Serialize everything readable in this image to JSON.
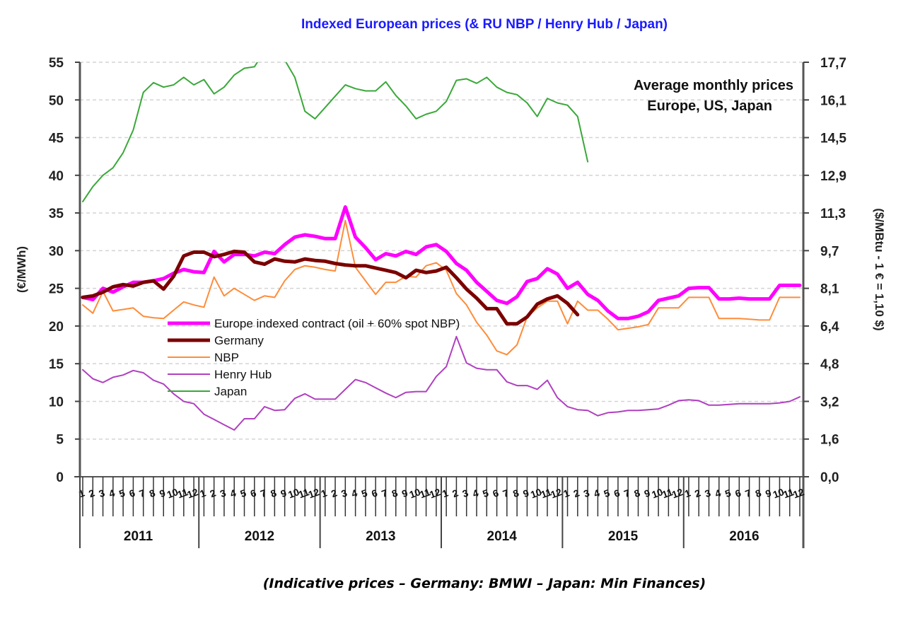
{
  "chart_data": {
    "type": "line",
    "title": "Indexed European prices (& RU NBP / Henry Hub / Japan)",
    "annotation": [
      "Average monthly prices",
      "Europe, US, Japan"
    ],
    "footnote": "(Indicative prices –  Germany: BMWI – Japan: Min Finances)",
    "ylabel": "(€/MWh)",
    "ylabel_right": "($/MBtu - 1 € = 1,10 $)",
    "ylim": [
      0,
      55
    ],
    "yticks": [
      0,
      5,
      10,
      15,
      20,
      25,
      30,
      35,
      40,
      45,
      50,
      55
    ],
    "yticks_right": [
      "0,0",
      "1,6",
      "3,2",
      "4,8",
      "6,4",
      "8,1",
      "9,7",
      "11,3",
      "12,9",
      "14,5",
      "16,1",
      "17,7"
    ],
    "grid": true,
    "legend_position": "center-left",
    "years": [
      "2011",
      "2012",
      "2013",
      "2014",
      "2015",
      "2016"
    ],
    "months": [
      "1",
      "2",
      "3",
      "4",
      "5",
      "6",
      "7",
      "8",
      "9",
      "10",
      "11",
      "12"
    ],
    "series": [
      {
        "name": "Europe indexed contract (oil + 60% spot NBP)",
        "color": "#ff00ff",
        "width": 5,
        "values": [
          23.8,
          23.5,
          25.0,
          24.5,
          25.2,
          25.8,
          25.8,
          26.0,
          26.3,
          27.0,
          27.5,
          27.2,
          27.1,
          29.9,
          28.5,
          29.5,
          29.5,
          29.3,
          29.8,
          29.6,
          30.8,
          31.8,
          32.1,
          31.9,
          31.6,
          31.6,
          35.8,
          31.8,
          30.4,
          28.8,
          29.6,
          29.3,
          29.9,
          29.5,
          30.5,
          30.8,
          29.9,
          28.3,
          27.4,
          25.8,
          24.6,
          23.4,
          23.0,
          23.9,
          25.9,
          26.3,
          27.6,
          26.9,
          25.0,
          25.8,
          24.2,
          23.4,
          22.0,
          21.0,
          21.0,
          21.3,
          21.9,
          23.4,
          23.7,
          24.0,
          25.0,
          25.1,
          25.1,
          23.6,
          23.6,
          23.7,
          23.6,
          23.6,
          23.6,
          25.4,
          25.4,
          25.4
        ]
      },
      {
        "name": "Germany",
        "color": "#7b0000",
        "width": 5,
        "values": [
          23.8,
          24.0,
          24.5,
          25.2,
          25.5,
          25.3,
          25.8,
          26.0,
          24.9,
          26.6,
          29.3,
          29.8,
          29.8,
          29.2,
          29.5,
          29.9,
          29.8,
          28.5,
          28.2,
          28.9,
          28.6,
          28.5,
          28.9,
          28.7,
          28.6,
          28.3,
          28.1,
          28.0,
          28.0,
          27.7,
          27.4,
          27.1,
          26.4,
          27.4,
          27.1,
          27.3,
          27.8,
          26.4,
          24.9,
          23.7,
          22.3,
          22.3,
          20.3,
          20.3,
          21.2,
          22.9,
          23.6,
          24.0,
          23.0,
          21.5,
          null,
          null,
          null,
          null,
          null,
          null,
          null,
          null,
          null,
          null,
          null,
          null,
          null,
          null,
          null,
          null,
          null,
          null,
          null,
          null,
          null,
          null
        ]
      },
      {
        "name": "NBP",
        "color": "#ff8c3a",
        "width": 2,
        "values": [
          22.8,
          21.7,
          24.6,
          22.0,
          22.2,
          22.4,
          21.3,
          21.1,
          21.0,
          22.1,
          23.2,
          22.8,
          22.5,
          26.5,
          24.0,
          25.0,
          24.2,
          23.4,
          24.0,
          23.8,
          26.0,
          27.5,
          28.0,
          27.8,
          27.5,
          27.3,
          34.0,
          27.8,
          26.0,
          24.2,
          25.8,
          25.8,
          26.6,
          26.5,
          28.0,
          28.4,
          27.4,
          24.3,
          22.8,
          20.5,
          18.8,
          16.7,
          16.2,
          17.5,
          21.2,
          22.4,
          23.3,
          23.3,
          20.3,
          23.3,
          22.1,
          22.1,
          20.9,
          19.5,
          19.7,
          19.9,
          20.2,
          22.4,
          22.4,
          22.4,
          23.8,
          23.8,
          23.8,
          21.0,
          21.0,
          21.0,
          20.9,
          20.8,
          20.8,
          23.8,
          23.8,
          23.8
        ]
      },
      {
        "name": "Henry Hub",
        "color": "#b040c0",
        "width": 2,
        "values": [
          14.2,
          13.0,
          12.5,
          13.2,
          13.5,
          14.1,
          13.8,
          12.8,
          12.3,
          11.0,
          10.0,
          9.7,
          8.3,
          7.6,
          6.9,
          6.2,
          7.7,
          7.7,
          9.3,
          8.8,
          8.9,
          10.4,
          11.0,
          10.3,
          10.3,
          10.3,
          11.6,
          12.9,
          12.5,
          11.8,
          11.1,
          10.5,
          11.2,
          11.3,
          11.3,
          13.3,
          14.6,
          18.6,
          15.1,
          14.4,
          14.2,
          14.2,
          12.6,
          12.1,
          12.1,
          11.6,
          12.8,
          10.5,
          9.3,
          8.9,
          8.8,
          8.1,
          8.5,
          8.6,
          8.8,
          8.8,
          8.9,
          9.0,
          9.5,
          10.1,
          10.2,
          10.1,
          9.5,
          9.5,
          9.6,
          9.7,
          9.7,
          9.7,
          9.7,
          9.8,
          10.0,
          10.6
        ]
      },
      {
        "name": "Japan",
        "color": "#3aa83a",
        "width": 2,
        "values": [
          36.5,
          38.5,
          40.0,
          41.0,
          43.0,
          46.0,
          51.0,
          52.3,
          51.7,
          52.0,
          53.0,
          52.0,
          52.7,
          50.8,
          51.7,
          53.3,
          54.2,
          54.4,
          56.5,
          56.0,
          55.3,
          53.0,
          48.5,
          47.5,
          49.0,
          50.5,
          52.0,
          51.5,
          51.2,
          51.2,
          52.4,
          50.6,
          49.2,
          47.5,
          48.1,
          48.5,
          49.8,
          52.6,
          52.8,
          52.2,
          53.0,
          51.7,
          51.0,
          50.7,
          49.6,
          47.8,
          50.2,
          49.6,
          49.3,
          47.8,
          41.8,
          null,
          null,
          null,
          null,
          null,
          null,
          null,
          null,
          null,
          null,
          null,
          null,
          null,
          null,
          null,
          null,
          null,
          null,
          null,
          null,
          null
        ]
      }
    ]
  }
}
